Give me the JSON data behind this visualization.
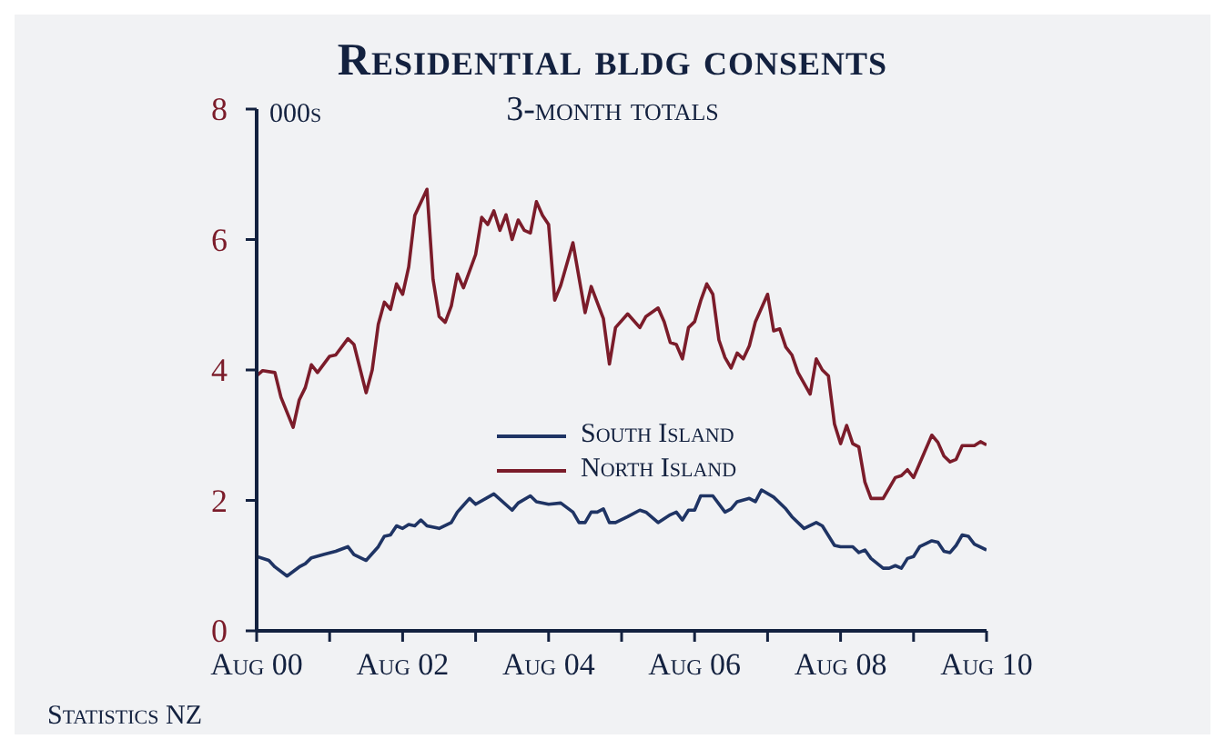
{
  "chart_data": {
    "type": "line",
    "title": "Residential bldg consents",
    "subtitle": "3-month totals",
    "ylabel": "000s",
    "annotations": [
      "Statistics NZ"
    ],
    "xlim": [
      "2000-08",
      "2010-08"
    ],
    "xticks": [
      {
        "value": "2000-08",
        "label": "Aug 00"
      },
      {
        "value": "2001-08",
        "label": null
      },
      {
        "value": "2002-08",
        "label": "Aug 02"
      },
      {
        "value": "2003-08",
        "label": null
      },
      {
        "value": "2004-08",
        "label": "Aug 04"
      },
      {
        "value": "2005-08",
        "label": null
      },
      {
        "value": "2006-08",
        "label": "Aug 06"
      },
      {
        "value": "2007-08",
        "label": null
      },
      {
        "value": "2008-08",
        "label": "Aug 08"
      },
      {
        "value": "2009-08",
        "label": null
      },
      {
        "value": "2010-08",
        "label": "Aug 10"
      }
    ],
    "ylim": [
      0,
      8
    ],
    "yticks": [
      0,
      2,
      4,
      6,
      8
    ],
    "grid": false,
    "legend": "center",
    "marker": "none",
    "line_style": "solid",
    "series": [
      {
        "name": "South Island",
        "color": "#1f3464",
        "x": [
          "2000-08",
          "2000-10",
          "2000-11",
          "2001-01",
          "2001-03",
          "2001-04",
          "2001-05",
          "2001-07",
          "2001-09",
          "2001-11",
          "2001-12",
          "2002-02",
          "2002-04",
          "2002-05",
          "2002-06",
          "2002-07",
          "2002-08",
          "2002-09",
          "2002-10",
          "2002-11",
          "2002-12",
          "2003-02",
          "2003-04",
          "2003-05",
          "2003-07",
          "2003-08",
          "2003-11",
          "2004-02",
          "2004-03",
          "2004-05",
          "2004-06",
          "2004-08",
          "2004-10",
          "2004-12",
          "2005-01",
          "2005-02",
          "2005-03",
          "2005-04",
          "2005-05",
          "2005-06",
          "2005-07",
          "2005-09",
          "2005-11",
          "2005-12",
          "2006-02",
          "2006-04",
          "2006-05",
          "2006-06",
          "2006-07",
          "2006-08",
          "2006-09",
          "2006-11",
          "2007-01",
          "2007-02",
          "2007-03",
          "2007-05",
          "2007-06",
          "2007-07",
          "2007-09",
          "2007-11",
          "2007-12",
          "2008-02",
          "2008-04",
          "2008-05",
          "2008-07",
          "2008-08",
          "2008-10",
          "2008-11",
          "2008-12",
          "2009-01",
          "2009-03",
          "2009-04",
          "2009-05",
          "2009-06",
          "2009-07",
          "2009-08",
          "2009-09",
          "2009-11",
          "2009-12",
          "2010-01",
          "2010-02",
          "2010-03",
          "2010-04",
          "2010-05",
          "2010-06",
          "2010-08"
        ],
        "values": [
          1.14,
          1.08,
          0.98,
          0.84,
          0.98,
          1.03,
          1.12,
          1.17,
          1.22,
          1.29,
          1.17,
          1.08,
          1.29,
          1.45,
          1.47,
          1.61,
          1.57,
          1.63,
          1.61,
          1.7,
          1.61,
          1.57,
          1.66,
          1.82,
          2.03,
          1.94,
          2.1,
          1.85,
          1.96,
          2.07,
          1.98,
          1.94,
          1.96,
          1.82,
          1.66,
          1.66,
          1.82,
          1.82,
          1.87,
          1.66,
          1.66,
          1.75,
          1.85,
          1.82,
          1.66,
          1.78,
          1.82,
          1.7,
          1.85,
          1.85,
          2.07,
          2.07,
          1.82,
          1.87,
          1.98,
          2.03,
          1.98,
          2.16,
          2.05,
          1.87,
          1.75,
          1.57,
          1.66,
          1.61,
          1.31,
          1.29,
          1.29,
          1.2,
          1.24,
          1.11,
          0.96,
          0.96,
          1.0,
          0.96,
          1.11,
          1.14,
          1.29,
          1.38,
          1.36,
          1.22,
          1.2,
          1.31,
          1.47,
          1.45,
          1.33,
          1.24
        ]
      },
      {
        "name": "North Island",
        "color": "#7b1c2a",
        "x": [
          "2000-08",
          "2000-09",
          "2000-11",
          "2000-12",
          "2001-02",
          "2001-03",
          "2001-04",
          "2001-05",
          "2001-06",
          "2001-08",
          "2001-09",
          "2001-11",
          "2001-12",
          "2002-02",
          "2002-03",
          "2002-04",
          "2002-05",
          "2002-06",
          "2002-07",
          "2002-08",
          "2002-09",
          "2002-10",
          "2002-12",
          "2003-01",
          "2003-02",
          "2003-03",
          "2003-04",
          "2003-05",
          "2003-06",
          "2003-08",
          "2003-09",
          "2003-10",
          "2003-11",
          "2003-12",
          "2004-01",
          "2004-02",
          "2004-03",
          "2004-04",
          "2004-05",
          "2004-06",
          "2004-07",
          "2004-08",
          "2004-09",
          "2004-10",
          "2004-12",
          "2005-02",
          "2005-03",
          "2005-05",
          "2005-06",
          "2005-07",
          "2005-09",
          "2005-11",
          "2005-12",
          "2006-02",
          "2006-03",
          "2006-04",
          "2006-05",
          "2006-06",
          "2006-07",
          "2006-08",
          "2006-09",
          "2006-10",
          "2006-11",
          "2006-12",
          "2007-01",
          "2007-02",
          "2007-03",
          "2007-04",
          "2007-05",
          "2007-06",
          "2007-08",
          "2007-09",
          "2007-10",
          "2007-11",
          "2007-12",
          "2008-01",
          "2008-03",
          "2008-04",
          "2008-05",
          "2008-06",
          "2008-07",
          "2008-08",
          "2008-09",
          "2008-10",
          "2008-11",
          "2008-12",
          "2009-01",
          "2009-03",
          "2009-05",
          "2009-06",
          "2009-07",
          "2009-08",
          "2009-11",
          "2009-12",
          "2010-01",
          "2010-02",
          "2010-03",
          "2010-04",
          "2010-06",
          "2010-07",
          "2010-08"
        ],
        "values": [
          3.91,
          3.99,
          3.96,
          3.58,
          3.12,
          3.54,
          3.73,
          4.08,
          3.96,
          4.21,
          4.23,
          4.48,
          4.39,
          3.65,
          4.0,
          4.7,
          5.04,
          4.93,
          5.32,
          5.16,
          5.58,
          6.37,
          6.77,
          5.39,
          4.82,
          4.73,
          4.98,
          5.47,
          5.26,
          5.77,
          6.34,
          6.23,
          6.44,
          6.14,
          6.38,
          6.0,
          6.3,
          6.14,
          6.1,
          6.58,
          6.37,
          6.23,
          5.07,
          5.3,
          5.95,
          4.88,
          5.28,
          4.79,
          4.09,
          4.65,
          4.86,
          4.65,
          4.82,
          4.95,
          4.74,
          4.42,
          4.39,
          4.17,
          4.65,
          4.74,
          5.06,
          5.32,
          5.16,
          4.46,
          4.19,
          4.03,
          4.26,
          4.17,
          4.37,
          4.74,
          5.16,
          4.6,
          4.63,
          4.35,
          4.23,
          3.96,
          3.63,
          4.17,
          4.0,
          3.91,
          3.17,
          2.87,
          3.15,
          2.87,
          2.82,
          2.28,
          2.03,
          2.03,
          2.35,
          2.38,
          2.47,
          2.35,
          3.0,
          2.89,
          2.68,
          2.59,
          2.63,
          2.84,
          2.84,
          2.9,
          2.85
        ]
      }
    ]
  }
}
